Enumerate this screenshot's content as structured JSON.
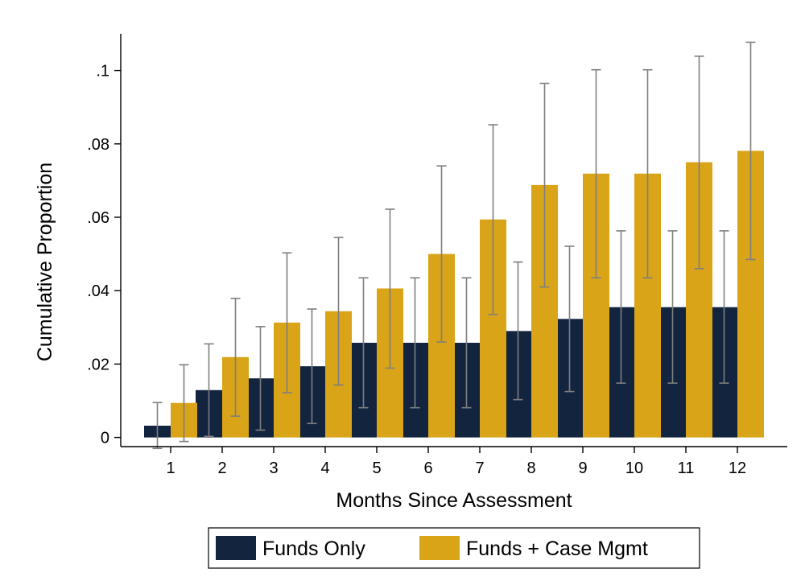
{
  "chart_data": {
    "type": "bar",
    "categories": [
      "1",
      "2",
      "3",
      "4",
      "5",
      "6",
      "7",
      "8",
      "9",
      "10",
      "11",
      "12"
    ],
    "xlabel": "Months Since Assessment",
    "ylabel": "Cumulative Proportion",
    "ylim": [
      0,
      0.11
    ],
    "yticks": [
      0,
      0.02,
      0.04,
      0.06,
      0.08,
      0.1
    ],
    "ytick_labels": [
      "0",
      ".02",
      ".04",
      ".06",
      ".08",
      ".1"
    ],
    "grid": false,
    "legend_position": "bottom",
    "error_bar_color": "#7f7f7f",
    "series": [
      {
        "name": "Funds Only",
        "color": "#13243f",
        "values": [
          0.0032,
          0.0129,
          0.0161,
          0.0194,
          0.0258,
          0.0258,
          0.0258,
          0.029,
          0.0323,
          0.0355,
          0.0355,
          0.0355
        ],
        "ci_low": [
          -0.003,
          0.0003,
          0.002,
          0.0038,
          0.0081,
          0.0081,
          0.0081,
          0.0103,
          0.0125,
          0.0148,
          0.0148,
          0.0148
        ],
        "ci_high": [
          0.0095,
          0.0255,
          0.0302,
          0.035,
          0.0435,
          0.0435,
          0.0435,
          0.0478,
          0.0521,
          0.0563,
          0.0563,
          0.0563
        ]
      },
      {
        "name": "Funds + Case Mgmt",
        "color": "#d9a418",
        "values": [
          0.0094,
          0.0219,
          0.0313,
          0.0344,
          0.0406,
          0.05,
          0.0594,
          0.0688,
          0.0719,
          0.0719,
          0.075,
          0.0781
        ],
        "ci_low": [
          -0.0011,
          0.0058,
          0.0122,
          0.0143,
          0.0189,
          0.026,
          0.0335,
          0.041,
          0.0435,
          0.0435,
          0.046,
          0.0485
        ],
        "ci_high": [
          0.0198,
          0.0379,
          0.0503,
          0.0545,
          0.0622,
          0.074,
          0.0852,
          0.0965,
          0.1002,
          0.1002,
          0.1039,
          0.1077
        ]
      }
    ]
  }
}
